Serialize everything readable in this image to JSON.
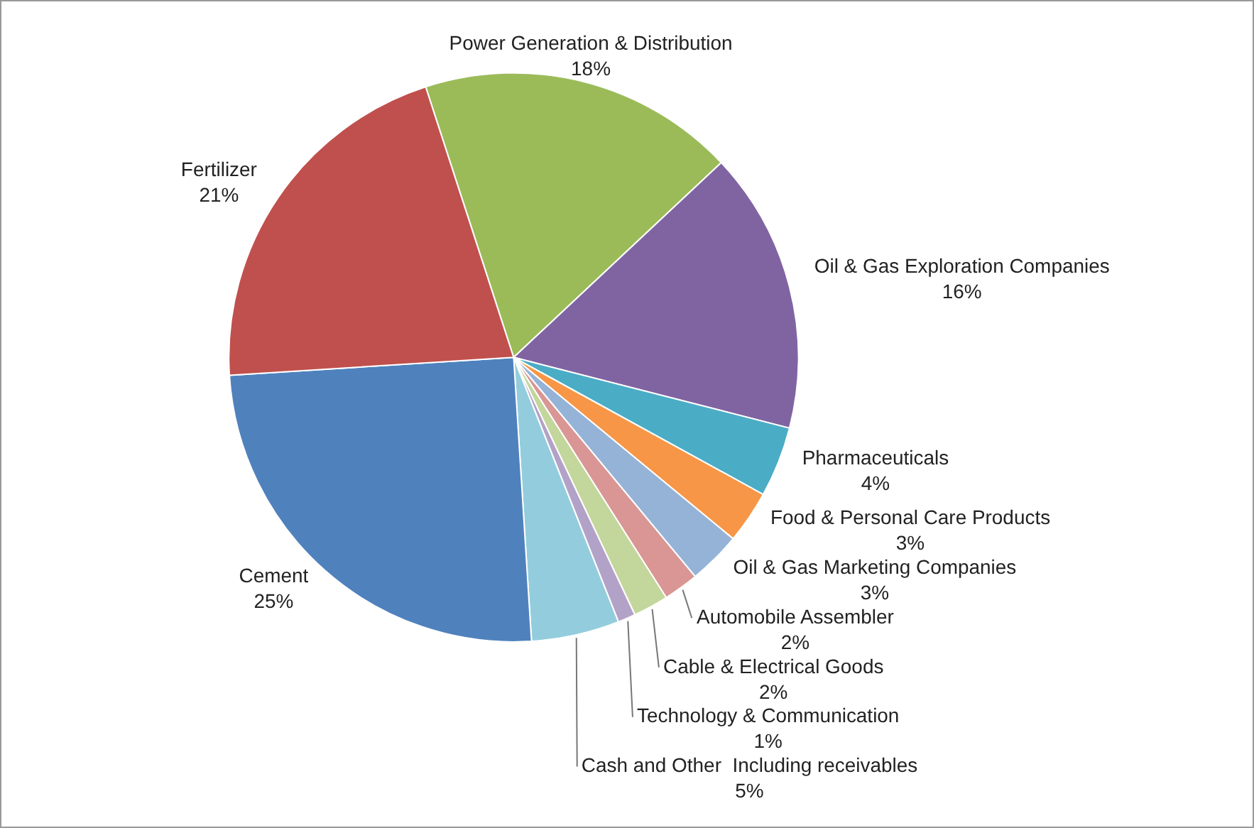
{
  "chart_data": {
    "type": "pie",
    "categories": [
      "Power Generation & Distribution",
      "Oil & Gas Exploration Companies",
      "Pharmaceuticals",
      "Food & Personal Care Products",
      "Oil & Gas Marketing Companies",
      "Automobile Assembler",
      "Cable & Electrical Goods",
      "Technology & Communication",
      "Cash and Other  Including receivables",
      "Cement",
      "Fertilizer"
    ],
    "values": [
      18,
      16,
      4,
      3,
      3,
      2,
      2,
      1,
      5,
      25,
      21
    ],
    "value_labels": [
      "18%",
      "16%",
      "4%",
      "3%",
      "3%",
      "2%",
      "2%",
      "1%",
      "5%",
      "25%",
      "21%"
    ],
    "colors": [
      "#9bbb59",
      "#8064a2",
      "#4bacc6",
      "#f79646",
      "#95b3d7",
      "#d99694",
      "#c3d69b",
      "#b3a2c7",
      "#93cddd",
      "#4f81bd",
      "#c0504d"
    ],
    "legend": false
  }
}
